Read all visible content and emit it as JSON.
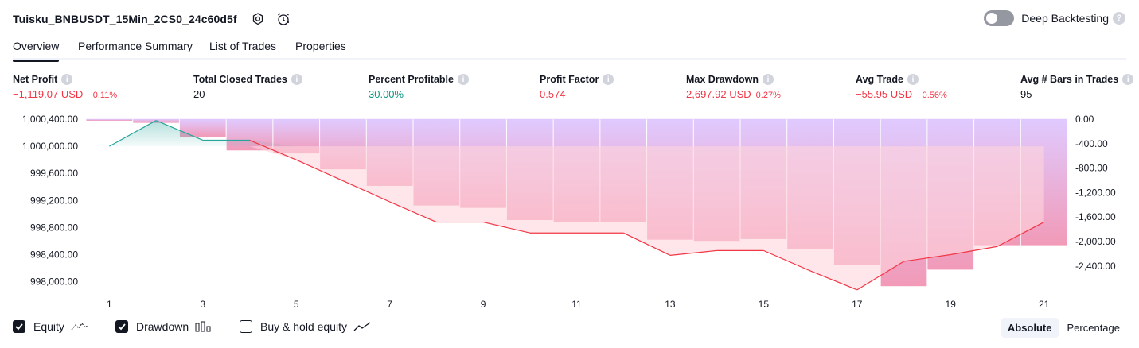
{
  "header": {
    "strategy_name": "Tuisku_BNBUSDT_15Min_2CS0_24c60d5f",
    "deep_backtesting_label": "Deep Backtesting",
    "deep_backtesting_enabled": false
  },
  "tabs": [
    {
      "label": "Overview",
      "active": true
    },
    {
      "label": "Performance Summary",
      "active": false
    },
    {
      "label": "List of Trades",
      "active": false
    },
    {
      "label": "Properties",
      "active": false
    }
  ],
  "metrics": [
    {
      "label": "Net Profit",
      "value": "−1,119.07 USD",
      "sub": "−0.11%",
      "color": "#f23645"
    },
    {
      "label": "Total Closed Trades",
      "value": "20",
      "sub": "",
      "color": "#131722"
    },
    {
      "label": "Percent Profitable",
      "value": "30.00%",
      "sub": "",
      "color": "#089981"
    },
    {
      "label": "Profit Factor",
      "value": "0.574",
      "sub": "",
      "color": "#f23645"
    },
    {
      "label": "Max Drawdown",
      "value": "2,697.92 USD",
      "sub": "0.27%",
      "color": "#f23645"
    },
    {
      "label": "Avg Trade",
      "value": "−55.95 USD",
      "sub": "−0.56%",
      "color": "#f23645"
    },
    {
      "label": "Avg # Bars in Trades",
      "value": "95",
      "sub": "",
      "color": "#131722"
    }
  ],
  "chart_data": {
    "type": "line",
    "x": [
      1,
      2,
      3,
      4,
      5,
      6,
      7,
      8,
      9,
      10,
      11,
      12,
      13,
      14,
      15,
      16,
      17,
      18,
      19,
      20,
      21
    ],
    "x_ticks": [
      "1",
      "3",
      "5",
      "7",
      "9",
      "11",
      "13",
      "15",
      "17",
      "19",
      "21"
    ],
    "series": [
      {
        "name": "Equity",
        "type": "line",
        "values": [
          1000000,
          1000380,
          1000090,
          1000090,
          999800,
          999490,
          999180,
          998880,
          998880,
          998720,
          998720,
          998720,
          998390,
          998460,
          998460,
          998160,
          997880,
          998300,
          998400,
          998520,
          998880
        ]
      },
      {
        "name": "Drawdown",
        "type": "bar",
        "values": [
          -20,
          -60,
          -290,
          -510,
          -560,
          -820,
          -1090,
          -1410,
          -1450,
          -1650,
          -1680,
          -1680,
          -1970,
          -1990,
          -1960,
          -2130,
          -2380,
          -2730,
          -2460,
          -2060,
          -2060
        ]
      }
    ],
    "y_left": {
      "ticks": [
        "1,000,400.00",
        "1,000,000.00",
        "999,600.00",
        "999,200.00",
        "998,800.00",
        "998,400.00",
        "998,000.00"
      ],
      "min": 997800,
      "max": 1000400
    },
    "y_right": {
      "ticks": [
        "0.00",
        "-400.00",
        "-800.00",
        "-1,200.00",
        "-1,600.00",
        "-2,000.00",
        "-2,400.00"
      ],
      "min": -2760,
      "max": 0
    },
    "colors": {
      "equity_up": "#26a69a",
      "equity_down": "#f23645",
      "drawdown": "#d9c1ff",
      "drawdown_dark": "#f195b6"
    }
  },
  "legend": [
    {
      "label": "Equity",
      "checked": true
    },
    {
      "label": "Drawdown",
      "checked": true
    },
    {
      "label": "Buy & hold equity",
      "checked": false
    }
  ],
  "view_toggle": {
    "options": [
      "Absolute",
      "Percentage"
    ],
    "selected": "Absolute"
  }
}
